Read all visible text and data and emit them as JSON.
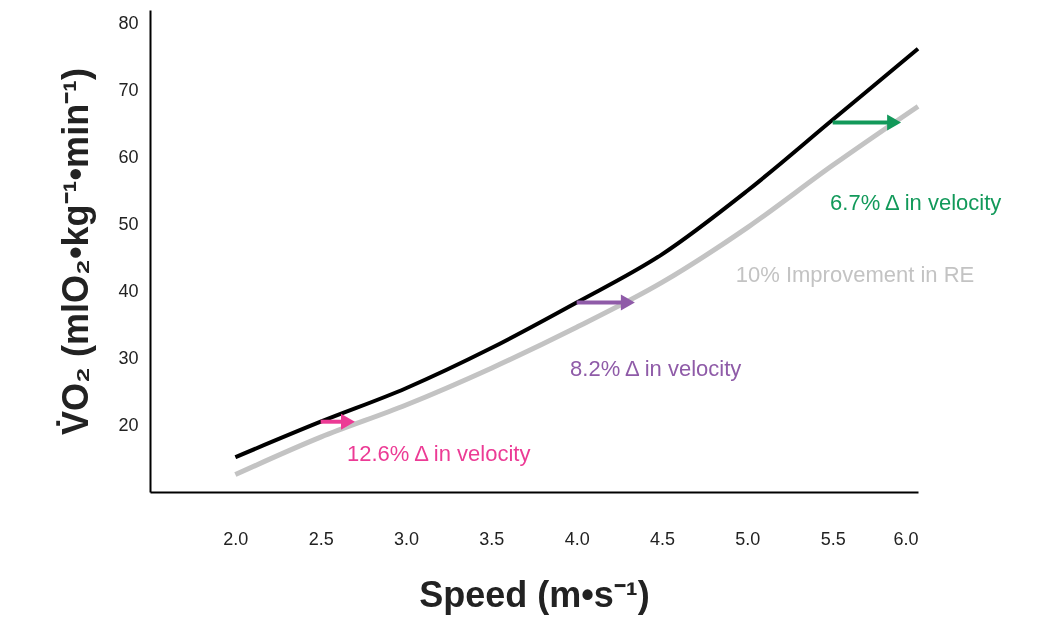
{
  "chart_data": {
    "type": "line",
    "xlabel": "Speed (m•s⁻¹)",
    "ylabel": "V̇O₂ (mlO₂•kg⁻¹•min⁻¹)",
    "xlim": [
      1.5,
      6.0
    ],
    "ylim": [
      10,
      82
    ],
    "xticks": [
      {
        "value": 2,
        "label": "2.0"
      },
      {
        "value": 2.5,
        "label": "2.5"
      },
      {
        "value": 3,
        "label": "3.0"
      },
      {
        "value": 3.5,
        "label": "3.5"
      },
      {
        "value": 4,
        "label": "4.0"
      },
      {
        "value": 4.5,
        "label": "4.5"
      },
      {
        "value": 5,
        "label": "5.0"
      },
      {
        "value": 5.5,
        "label": "5.5"
      },
      {
        "value": 6,
        "label": "6.0"
      }
    ],
    "yticks": [
      20,
      30,
      40,
      50,
      60,
      70,
      80
    ],
    "grid": false,
    "series": [
      {
        "color": "#000000",
        "x": [
          2.0,
          2.5,
          3.0,
          3.5,
          4.0,
          4.5,
          5.0,
          5.5,
          6.0
        ],
        "values": [
          15.2,
          20.5,
          25.5,
          31.5,
          38.3,
          45.5,
          55,
          65.6,
          76.2
        ]
      },
      {
        "name": "10% Improvement in RE",
        "color": "#c3c3c3",
        "x": [
          2.0,
          2.5,
          3.0,
          3.5,
          4.0,
          4.5,
          5.0,
          5.5,
          6.0
        ],
        "values": [
          12.6,
          18.2,
          23,
          28.5,
          34.6,
          41.3,
          49.5,
          58.8,
          67.6
        ]
      },
      {
        "name": "12.6% Δ in velocity",
        "color": "#ec3b95",
        "marker": "triangle",
        "x": [
          2.5,
          2.66
        ],
        "values": [
          20.5,
          20.5
        ]
      },
      {
        "name": "8.2% Δ in velocity",
        "color": "#8f5ba8",
        "marker": "triangle",
        "x": [
          4.0,
          4.3
        ],
        "values": [
          38.3,
          38.3
        ]
      },
      {
        "name": "6.7% Δ in velocity",
        "color": "#12995a",
        "marker": "triangle",
        "x": [
          5.5,
          5.86
        ],
        "values": [
          65.2,
          65.2
        ]
      }
    ]
  }
}
